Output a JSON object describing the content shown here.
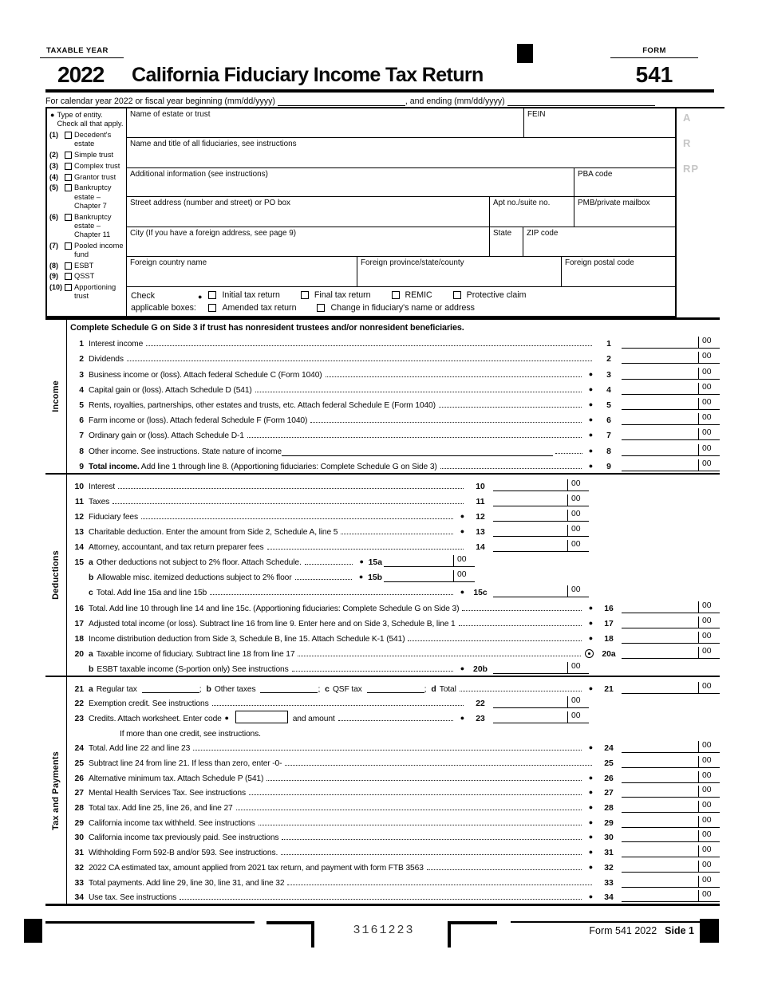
{
  "header": {
    "taxable_year_label": "TAXABLE YEAR",
    "year": "2022",
    "title": "California Fiduciary Income Tax Return",
    "form_label": "FORM",
    "form_number": "541",
    "calendar_pre": "For calendar year 2022 or fiscal year beginning (mm/dd/yyyy)",
    "calendar_mid": ", and ending (mm/dd/yyyy)"
  },
  "entity": {
    "title_line1": "Type of entity.",
    "title_line2": "Check all that apply.",
    "items": [
      {
        "num": "(1)",
        "label": "Decedent's estate"
      },
      {
        "num": "(2)",
        "label": "Simple trust"
      },
      {
        "num": "(3)",
        "label": "Complex trust"
      },
      {
        "num": "(4)",
        "label": "Grantor trust"
      },
      {
        "num": "(5)",
        "label": "Bankruptcy estate – Chapter 7"
      },
      {
        "num": "(6)",
        "label": "Bankruptcy estate – Chapter 11"
      },
      {
        "num": "(7)",
        "label": "Pooled income fund"
      },
      {
        "num": "(8)",
        "label": "ESBT"
      },
      {
        "num": "(9)",
        "label": "QSST"
      },
      {
        "num": "(10)",
        "label": "Apportioning trust"
      }
    ]
  },
  "fields": {
    "name_estate": "Name of estate or trust",
    "fein": "FEIN",
    "fiduciaries": "Name and title of all fiduciaries, see instructions",
    "additional": "Additional information (see instructions)",
    "pba": "PBA code",
    "street": "Street address (number and street) or PO box",
    "apt": "Apt no./suite no.",
    "pmb": "PMB/private mailbox",
    "city": "City (If you have a foreign address, see page 9)",
    "state": "State",
    "zip": "ZIP code",
    "foreign_country": "Foreign country name",
    "foreign_province": "Foreign province/state/county",
    "foreign_postal": "Foreign postal code",
    "margin_letters": [
      "A",
      "R",
      "RP"
    ]
  },
  "check_boxes": {
    "label_line1": "Check",
    "label_line2": "applicable boxes:",
    "row1": [
      "Initial tax return",
      "Final tax return",
      "REMIC",
      "Protective claim"
    ],
    "row2": [
      "Amended tax return",
      "Change in fiduciary's name or address"
    ]
  },
  "amounts": {
    "cents": "00"
  },
  "sections": [
    {
      "side_label": "Income",
      "header": "Complete Schedule G on Side 3 if trust has nonresident trustees and/or nonresident beneficiaries.",
      "rows": [
        {
          "type": "standard",
          "num": "1",
          "label": "Interest income",
          "col": "right",
          "right_num": "1",
          "bullet": null
        },
        {
          "type": "standard",
          "num": "2",
          "label": "Dividends",
          "col": "right",
          "right_num": "2",
          "bullet": null
        },
        {
          "type": "standard",
          "num": "3",
          "label": "Business income or (loss). Attach federal Schedule C (Form 1040)",
          "col": "right",
          "right_num": "3",
          "bullet": "solid"
        },
        {
          "type": "standard",
          "num": "4",
          "label": "Capital gain or (loss). Attach Schedule D (541)",
          "col": "right",
          "right_num": "4",
          "bullet": "solid"
        },
        {
          "type": "standard",
          "num": "5",
          "label": "Rents, royalties, partnerships, other estates and trusts, etc. Attach federal Schedule E (Form 1040)",
          "col": "right",
          "right_num": "5",
          "bullet": "solid"
        },
        {
          "type": "standard",
          "num": "6",
          "label": "Farm income or (loss). Attach federal Schedule F (Form 1040)",
          "col": "right",
          "right_num": "6",
          "bullet": "solid"
        },
        {
          "type": "standard",
          "num": "7",
          "label": "Ordinary gain or (loss). Attach Schedule D-1",
          "col": "right",
          "right_num": "7",
          "bullet": "solid"
        },
        {
          "type": "nature",
          "num": "8",
          "label": "Other income. See instructions. State nature of income",
          "col": "right",
          "right_num": "8",
          "bullet": "solid"
        },
        {
          "type": "standard",
          "num": "9",
          "bold_prefix": "Total income.",
          "label": " Add line 1 through line 8. (Apportioning fiduciaries: Complete Schedule G on Side 3)",
          "col": "right",
          "right_num": "9",
          "bullet": "solid"
        }
      ]
    },
    {
      "side_label": "Deductions",
      "rows": [
        {
          "type": "standard",
          "num": "10",
          "label": "Interest",
          "col": "mid",
          "right_num": "10",
          "bullet": null
        },
        {
          "type": "standard",
          "num": "11",
          "label": "Taxes",
          "col": "mid",
          "right_num": "11",
          "bullet": null
        },
        {
          "type": "standard",
          "num": "12",
          "label": "Fiduciary fees",
          "col": "mid",
          "right_num": "12",
          "bullet": "solid"
        },
        {
          "type": "standard",
          "num": "13",
          "label": "Charitable deduction. Enter the amount from Side 2, Schedule A, line 5",
          "col": "mid",
          "right_num": "13",
          "bullet": "solid"
        },
        {
          "type": "standard",
          "num": "14",
          "label": "Attorney, accountant, and tax return preparer fees",
          "col": "mid",
          "right_num": "14",
          "bullet": null
        },
        {
          "type": "left15",
          "num": "15",
          "letter": "a",
          "label": "Other deductions not subject to 2% floor. Attach Schedule.",
          "right_num": "15a",
          "bullet": "solid"
        },
        {
          "type": "left15",
          "num": "",
          "letter": "b",
          "label": "Allowable misc. itemized deductions subject to 2% floor",
          "right_num": "15b",
          "bullet": "solid"
        },
        {
          "type": "standard",
          "num": "",
          "letter": "c",
          "label": "Total. Add line 15a and line 15b",
          "col": "mid",
          "right_num": "15c",
          "bullet": "solid"
        },
        {
          "type": "standard",
          "num": "16",
          "label": "Total. Add line 10 through line 14 and line 15c. (Apportioning fiduciaries: Complete Schedule G on Side 3)",
          "col": "right",
          "right_num": "16",
          "bullet": "solid"
        },
        {
          "type": "standard",
          "num": "17",
          "label": "Adjusted total income (or loss). Subtract line 16 from line 9. Enter here and on Side 3, Schedule B, line 1",
          "col": "right",
          "right_num": "17",
          "bullet": "solid"
        },
        {
          "type": "standard",
          "num": "18",
          "label": "Income distribution deduction from Side 3, Schedule B, line 15. Attach Schedule K-1 (541)",
          "col": "right",
          "right_num": "18",
          "bullet": "solid"
        },
        {
          "type": "standard",
          "num": "20",
          "letter": "a",
          "label": "Taxable income of fiduciary. Subtract line 18 from line 17",
          "col": "right",
          "right_num": "20a",
          "bullet": "target"
        },
        {
          "type": "standard",
          "num": "",
          "letter": "b",
          "label": "ESBT taxable income (S-portion only) See instructions",
          "col": "mid",
          "right_num": "20b",
          "bullet": "solid"
        }
      ]
    },
    {
      "side_label": "Tax and Payments",
      "rows": [
        {
          "type": "tax21",
          "num": "21",
          "letters": [
            "a",
            "b",
            "c",
            "d"
          ],
          "a_label": "Regular tax",
          "b_label": "Other taxes",
          "c_label": "QSF tax",
          "d_label": "Total",
          "sep": ";",
          "col": "right",
          "right_num": "21",
          "bullet": "solid"
        },
        {
          "type": "standard",
          "num": "22",
          "label": "Exemption credit. See instructions",
          "col": "mid",
          "right_num": "22",
          "bullet": null
        },
        {
          "type": "credits",
          "num": "23",
          "pre_label": "Credits. Attach worksheet. Enter code",
          "post_label": "and amount",
          "col": "mid",
          "right_num": "23",
          "bullet": "solid"
        },
        {
          "type": "note",
          "label": "If more than one credit, see instructions."
        },
        {
          "type": "standard",
          "num": "24",
          "label": "Total. Add line 22 and line 23",
          "col": "right",
          "right_num": "24",
          "bullet": "solid"
        },
        {
          "type": "standard",
          "num": "25",
          "label": "Subtract line 24 from line 21. If less than zero, enter -0-",
          "col": "right",
          "right_num": "25",
          "bullet": null
        },
        {
          "type": "standard",
          "num": "26",
          "label": "Alternative minimum tax. Attach Schedule P (541)",
          "col": "right",
          "right_num": "26",
          "bullet": "solid"
        },
        {
          "type": "standard",
          "num": "27",
          "label": "Mental Health Services Tax. See instructions",
          "col": "right",
          "right_num": "27",
          "bullet": "solid"
        },
        {
          "type": "standard",
          "num": "28",
          "label": "Total tax. Add line 25, line 26, and line 27",
          "col": "right",
          "right_num": "28",
          "bullet": "solid"
        },
        {
          "type": "standard",
          "num": "29",
          "label": "California income tax withheld. See instructions",
          "col": "right",
          "right_num": "29",
          "bullet": "solid"
        },
        {
          "type": "standard",
          "num": "30",
          "label": "California income tax previously paid. See instructions",
          "col": "right",
          "right_num": "30",
          "bullet": "solid"
        },
        {
          "type": "standard",
          "num": "31",
          "label": "Withholding Form 592-B and/or 593. See instructions.",
          "col": "right",
          "right_num": "31",
          "bullet": "solid"
        },
        {
          "type": "standard",
          "num": "32",
          "label": "2022 CA estimated tax, amount applied from 2021 tax return, and payment with form FTB 3563",
          "col": "right",
          "right_num": "32",
          "bullet": "solid"
        },
        {
          "type": "standard",
          "num": "33",
          "label": "Total payments. Add line 29, line 30, line 31, and line 32",
          "col": "right",
          "right_num": "33",
          "bullet": null
        },
        {
          "type": "standard",
          "num": "34",
          "label": "Use tax. See instructions",
          "col": "right",
          "right_num": "34",
          "bullet": "solid"
        }
      ]
    }
  ],
  "footer": {
    "scanline": "3161223",
    "form_text": "Form 541  2022",
    "side_text": "Side 1"
  }
}
